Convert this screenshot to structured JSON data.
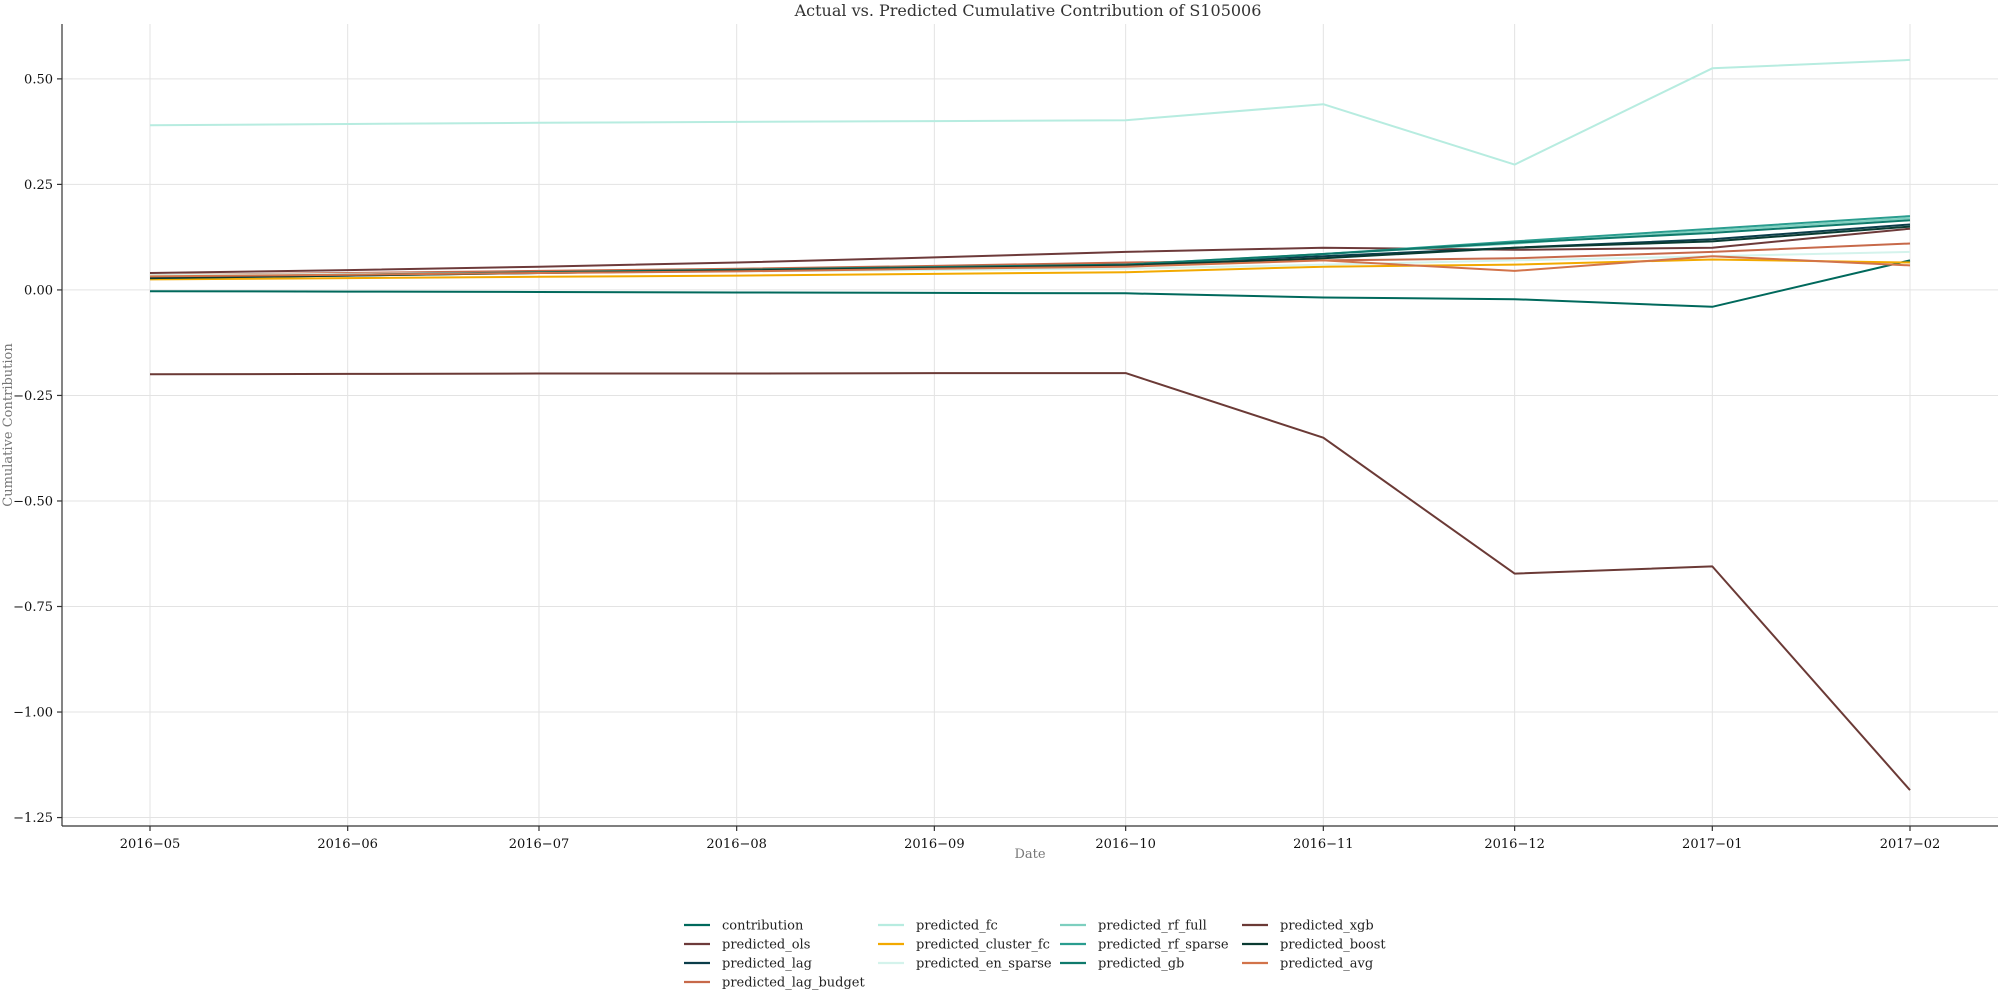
{
  "chart_data": {
    "type": "line",
    "title": "Actual vs. Predicted Cumulative Contribution of S105006",
    "xlabel": "Date",
    "ylabel": "Cumulative Contribution",
    "x": [
      "2016−05",
      "2016−06",
      "2016−07",
      "2016−08",
      "2016−09",
      "2016−10",
      "2016−11",
      "2016−12",
      "2017−01",
      "2017−02"
    ],
    "x_months": [
      "2016-05-01",
      "2016-06-01",
      "2016-07-01",
      "2016-08-01",
      "2016-09-01",
      "2016-10-01",
      "2016-11-01",
      "2016-12-01",
      "2017-01-01",
      "2017-02-01"
    ],
    "ylim": [
      -1.27,
      0.63
    ],
    "yticks": [
      0.5,
      0.25,
      0.0,
      -0.25,
      -0.5,
      -0.75,
      -1.0,
      -1.25
    ],
    "ytick_labels": [
      "0.50",
      "0.25",
      "0.00",
      "−0.25",
      "−0.50",
      "−0.75",
      "−1.00",
      "−1.25"
    ],
    "grid": true,
    "legend_position": "bottom-center",
    "series": [
      {
        "name": "contribution",
        "color": "#00695c",
        "values": [
          -0.003,
          -0.004,
          -0.005,
          -0.006,
          -0.007,
          -0.008,
          -0.018,
          -0.022,
          -0.04,
          0.07
        ]
      },
      {
        "name": "predicted_ols",
        "color": "#6d3a3a",
        "values": [
          0.04,
          0.047,
          0.055,
          0.065,
          0.077,
          0.09,
          0.1,
          0.095,
          0.1,
          0.145
        ]
      },
      {
        "name": "predicted_lag",
        "color": "#0b3d4a",
        "values": [
          0.03,
          0.036,
          0.042,
          0.048,
          0.054,
          0.062,
          0.08,
          0.1,
          0.12,
          0.155
        ]
      },
      {
        "name": "predicted_lag_budget",
        "color": "#c7694a",
        "values": [
          0.035,
          0.04,
          0.045,
          0.05,
          0.057,
          0.065,
          0.07,
          0.075,
          0.09,
          0.11
        ]
      },
      {
        "name": "predicted_fc",
        "color": "#b7ece0",
        "values": [
          0.39,
          0.393,
          0.396,
          0.398,
          0.4,
          0.402,
          0.44,
          0.297,
          0.525,
          0.545
        ]
      },
      {
        "name": "predicted_cluster_fc",
        "color": "#f2a900",
        "values": [
          0.025,
          0.028,
          0.031,
          0.034,
          0.038,
          0.042,
          0.055,
          0.06,
          0.072,
          0.065
        ]
      },
      {
        "name": "predicted_en_sparse",
        "color": "#d4f3ec",
        "values": [
          0.035,
          0.038,
          0.041,
          0.044,
          0.047,
          0.05,
          0.06,
          0.07,
          0.08,
          0.09
        ]
      },
      {
        "name": "predicted_rf_full",
        "color": "#7dcfbf",
        "values": [
          0.03,
          0.035,
          0.04,
          0.046,
          0.052,
          0.06,
          0.085,
          0.11,
          0.14,
          0.17
        ]
      },
      {
        "name": "predicted_rf_sparse",
        "color": "#2a9d8f",
        "values": [
          0.028,
          0.034,
          0.04,
          0.046,
          0.052,
          0.058,
          0.085,
          0.115,
          0.145,
          0.175
        ]
      },
      {
        "name": "predicted_gb",
        "color": "#0f7a6c",
        "values": [
          0.03,
          0.036,
          0.042,
          0.048,
          0.054,
          0.06,
          0.085,
          0.112,
          0.135,
          0.165
        ]
      },
      {
        "name": "predicted_xgb",
        "color": "#6b3a36",
        "values": [
          -0.2,
          -0.199,
          -0.198,
          -0.198,
          -0.197,
          -0.197,
          -0.35,
          -0.672,
          -0.655,
          -1.185
        ]
      },
      {
        "name": "predicted_boost",
        "color": "#0a3b32",
        "values": [
          0.028,
          0.034,
          0.04,
          0.046,
          0.052,
          0.058,
          0.075,
          0.1,
          0.115,
          0.15
        ]
      },
      {
        "name": "predicted_avg",
        "color": "#d2734a",
        "values": [
          0.032,
          0.036,
          0.04,
          0.044,
          0.05,
          0.055,
          0.07,
          0.045,
          0.08,
          0.058
        ]
      }
    ]
  }
}
